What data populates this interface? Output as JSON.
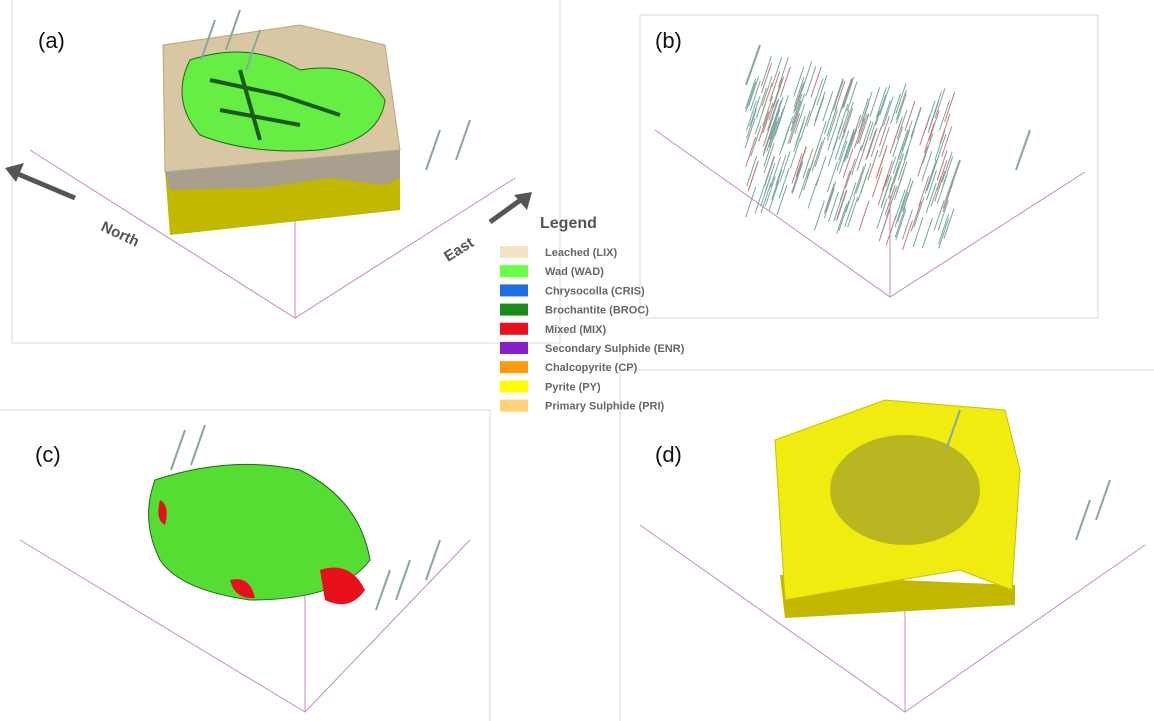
{
  "panels": [
    {
      "label": "(a)"
    },
    {
      "label": "(b)"
    },
    {
      "label": "(c)"
    },
    {
      "label": "(d)"
    }
  ],
  "annotations": {
    "north": "North",
    "east": "East"
  },
  "legend": {
    "title": "Legend",
    "items": [
      {
        "label": "Leached (LIX)",
        "color": "#f3e2c3"
      },
      {
        "label": "Wad (WAD)",
        "color": "#66ff44"
      },
      {
        "label": "Chrysocolla (CRIS)",
        "color": "#1e6fe0"
      },
      {
        "label": "Brochantite (BROC)",
        "color": "#1a8c1a"
      },
      {
        "label": "Mixed (MIX)",
        "color": "#e8101a"
      },
      {
        "label": "Secondary Sulphide (ENR)",
        "color": "#8a1ec8"
      },
      {
        "label": "Chalcopyrite (CP)",
        "color": "#ff9a10"
      },
      {
        "label": "Pyrite (PY)",
        "color": "#ffff00"
      },
      {
        "label": "Primary Sulphide (PRI)",
        "color": "#ffd27a"
      }
    ]
  }
}
